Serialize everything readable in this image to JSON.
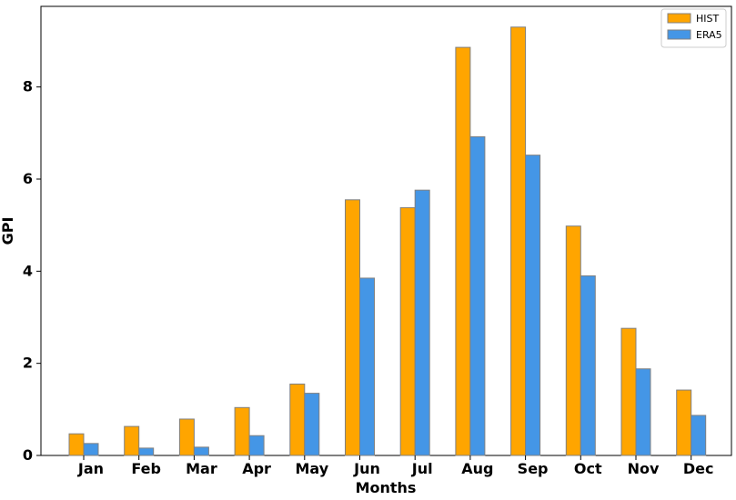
{
  "chart_data": {
    "type": "bar",
    "title": "",
    "xlabel": "Months",
    "ylabel": "GPI",
    "categories": [
      "Jan",
      "Feb",
      "Mar",
      "Apr",
      "May",
      "Jun",
      "Jul",
      "Aug",
      "Sep",
      "Oct",
      "Nov",
      "Dec"
    ],
    "series": [
      {
        "name": "HIST",
        "color": "#ffa500",
        "values": [
          0.47,
          0.63,
          0.79,
          1.04,
          1.55,
          5.55,
          5.38,
          8.86,
          9.3,
          4.98,
          2.76,
          1.42
        ]
      },
      {
        "name": "ERA5",
        "color": "#4496e6",
        "values": [
          0.26,
          0.16,
          0.18,
          0.43,
          1.35,
          3.85,
          5.76,
          6.92,
          6.52,
          3.9,
          1.88,
          0.87
        ]
      }
    ],
    "ylim": [
      0,
      9.75
    ],
    "yticks": [
      0,
      2,
      4,
      6,
      8
    ],
    "grid": false,
    "legend_position": "top-right",
    "bar_edge_color": "#808080"
  }
}
